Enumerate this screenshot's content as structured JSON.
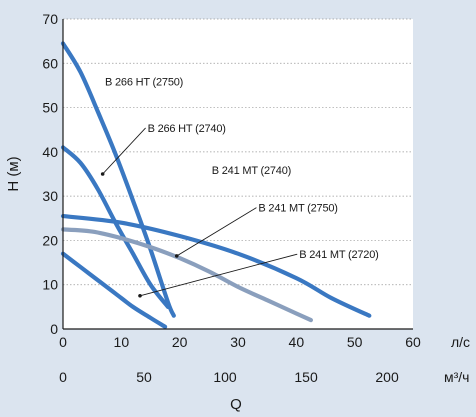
{
  "chart_data": {
    "type": "line",
    "title": "",
    "ylabel": "H (м)",
    "xlabel": "Q",
    "x_units_primary": "л/с",
    "x_units_secondary": "м³/ч",
    "xlim": [
      0,
      60
    ],
    "ylim": [
      0,
      70
    ],
    "x_ticks": [
      0,
      10,
      20,
      30,
      40,
      50,
      60
    ],
    "y_ticks": [
      0,
      10,
      20,
      30,
      40,
      50,
      60,
      70
    ],
    "x2_ticks": [
      0,
      50,
      100,
      150,
      200
    ],
    "grid": true,
    "colors": {
      "background": "#dbe4ef",
      "plot_area": "#ffffff",
      "blue": "#3a78c2",
      "grey": "#8a9fbd",
      "grid": "#9a9a9a"
    },
    "series": [
      {
        "name": "B 266 HT (2750)",
        "color": "blue",
        "x": [
          0,
          3,
          6,
          9,
          12,
          15,
          18,
          19
        ],
        "y": [
          64.5,
          58,
          49,
          39.5,
          29,
          18,
          6,
          3
        ]
      },
      {
        "name": "B 266 HT (2740)",
        "color": "blue",
        "x": [
          0,
          3,
          6,
          9,
          12,
          15,
          18
        ],
        "y": [
          41,
          37.5,
          31.5,
          24,
          17,
          10,
          5
        ]
      },
      {
        "name": "B 241 MT (2750)",
        "color": "grey",
        "x": [
          0,
          5,
          10,
          15,
          20,
          25,
          30,
          35,
          40,
          42.5
        ],
        "y": [
          22.5,
          22,
          20.5,
          18.5,
          16,
          13,
          9.5,
          6.5,
          3.5,
          2
        ]
      },
      {
        "name": "B 241 MT (2720)",
        "color": "blue",
        "x": [
          0,
          3,
          6,
          9,
          12,
          15,
          17.5
        ],
        "y": [
          17,
          14,
          11,
          8,
          5,
          2.5,
          0.5
        ]
      },
      {
        "name": "B 241 MT (2740)",
        "color": "blue",
        "x": [
          0,
          10,
          20,
          30,
          40,
          46,
          52.5
        ],
        "y": [
          25.5,
          24,
          21,
          17,
          11.5,
          7,
          3
        ]
      }
    ],
    "annotations": [
      {
        "text": "B 266 HT (2750)",
        "x": 7.2,
        "y": 55,
        "pointer": null
      },
      {
        "text": "B 266 HT (2740)",
        "x": 14.5,
        "y": 44.5,
        "pointer": [
          6.8,
          35
        ]
      },
      {
        "text": "B 241 MT (2740)",
        "x": 25.5,
        "y": 35,
        "pointer": null
      },
      {
        "text": "B 241 MT (2750)",
        "x": 33.5,
        "y": 26.5,
        "pointer": [
          19.5,
          16.5
        ]
      },
      {
        "text": "B 241 MT (2720)",
        "x": 40.5,
        "y": 16,
        "pointer": [
          13.2,
          7.5
        ]
      }
    ]
  }
}
